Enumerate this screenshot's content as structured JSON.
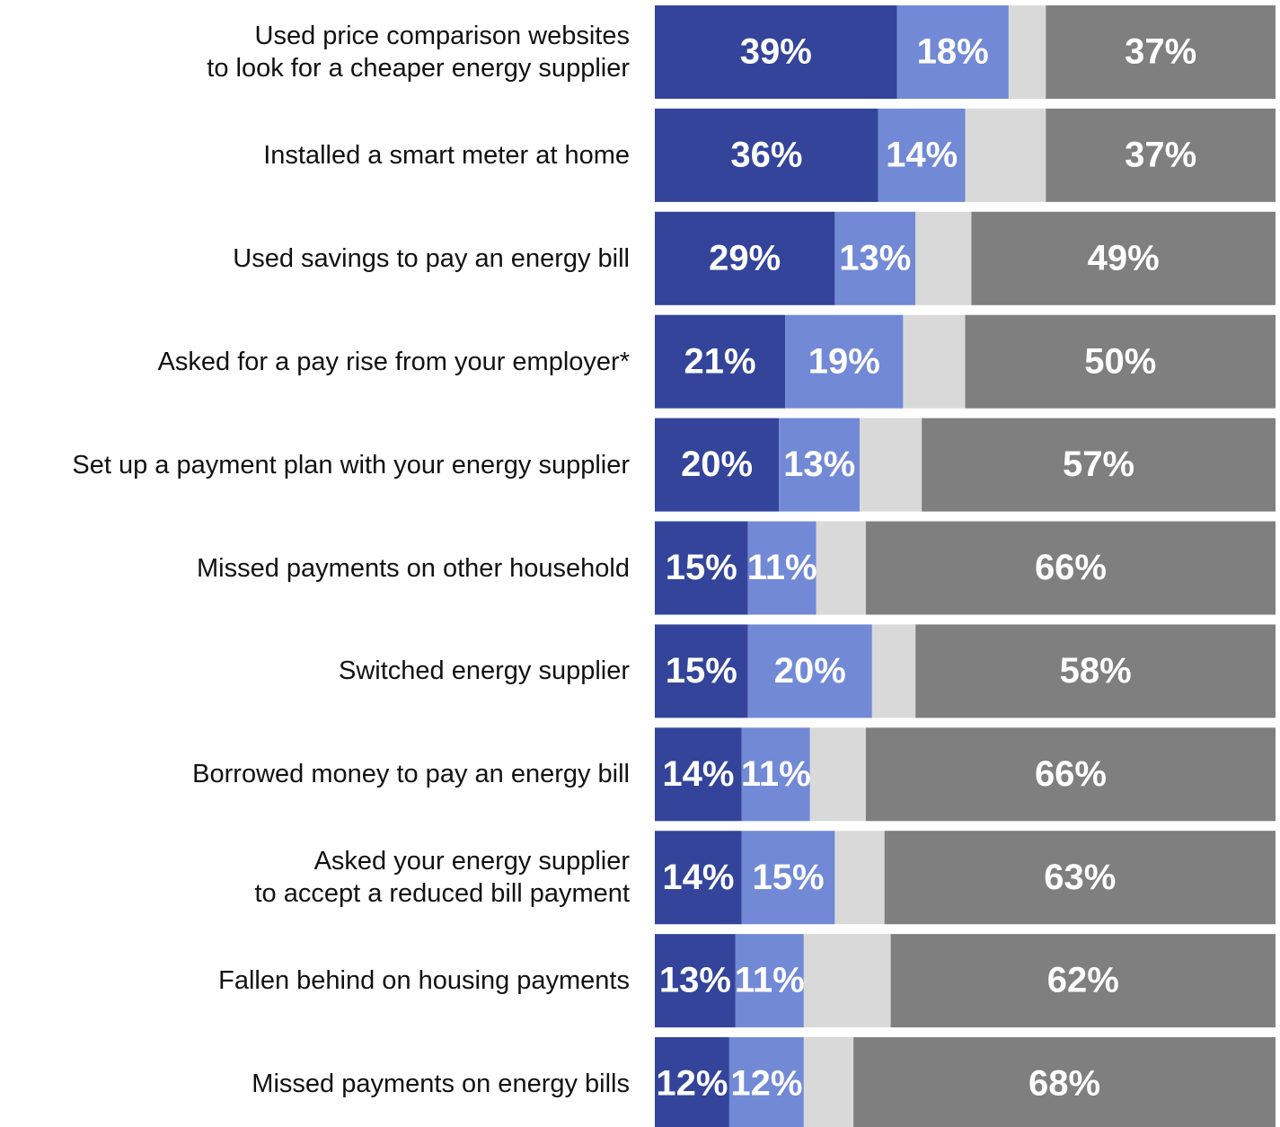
{
  "chart_data": {
    "type": "stacked_barh",
    "categories": [
      "Used price comparison websites\nto look for a cheaper energy supplier",
      "Installed a smart meter at home",
      "Used savings to pay an energy bill",
      "Asked for a pay rise from your employer*",
      "Set up a payment plan with your energy supplier",
      "Missed payments on other household ",
      "Switched energy supplier",
      "Borrowed money to pay an energy bill",
      "Asked your energy supplier\nto accept a reduced bill payment",
      "Fallen behind on housing payments",
      "Missed payments on energy bills"
    ],
    "xlim": [
      0,
      100
    ],
    "series": [
      {
        "color": "#33449a",
        "values": [
          39,
          36,
          29,
          21,
          20,
          15,
          15,
          14,
          14,
          13,
          12
        ],
        "value_labels": [
          "39%",
          "36%",
          "29%",
          "21%",
          "20%",
          "15%",
          "15%",
          "14%",
          "14%",
          "13%",
          "12%"
        ]
      },
      {
        "color": "#7289d6",
        "values": [
          18,
          14,
          13,
          19,
          13,
          11,
          20,
          11,
          15,
          11,
          12
        ],
        "value_labels": [
          "18%",
          "14%",
          "13%",
          "19%",
          "13%",
          "11%",
          "20%",
          "11%",
          "15%",
          "11%",
          "12%"
        ]
      },
      {
        "color": "#d9d9d9",
        "values": [
          6,
          13,
          9,
          10,
          10,
          8,
          7,
          9,
          8,
          14,
          8
        ]
      },
      {
        "color": "#7f7f7f",
        "values": [
          37,
          37,
          49,
          50,
          57,
          66,
          58,
          66,
          63,
          62,
          68
        ],
        "value_labels": [
          "37%",
          "37%",
          "49%",
          "50%",
          "57%",
          "66%",
          "58%",
          "66%",
          "63%",
          "62%",
          "68%"
        ]
      }
    ]
  }
}
